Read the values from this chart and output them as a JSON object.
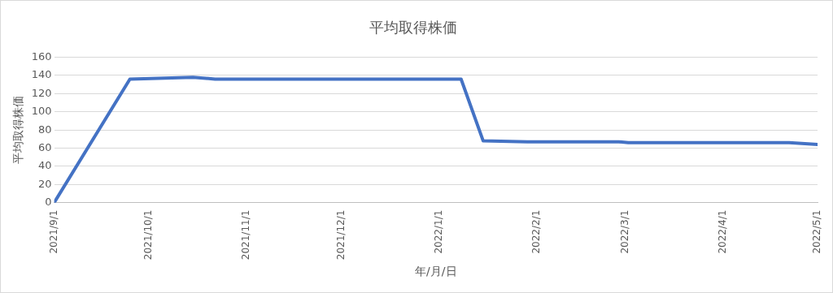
{
  "chart_data": {
    "type": "line",
    "title": "平均取得株価",
    "xlabel": "年/月/日",
    "ylabel": "平均取得株価",
    "x": [
      "2021-09-01",
      "2021-09-25",
      "2021-10-15",
      "2021-10-22",
      "2022-01-08",
      "2022-01-15",
      "2022-01-29",
      "2022-02-27",
      "2022-03-02",
      "2022-04-22",
      "2022-05-01"
    ],
    "series": [
      {
        "color": "#4472c4",
        "values": [
          0,
          136,
          138,
          136,
          136,
          68,
          67,
          67,
          66,
          66,
          64
        ]
      }
    ],
    "xlim": [
      "2021-09-01",
      "2022-05-01"
    ],
    "xticks": [
      {
        "value": "2021-09-01",
        "label": "2021/9/1"
      },
      {
        "value": "2021-10-01",
        "label": "2021/10/1"
      },
      {
        "value": "2021-11-01",
        "label": "2021/11/1"
      },
      {
        "value": "2021-12-01",
        "label": "2021/12/1"
      },
      {
        "value": "2022-01-01",
        "label": "2022/1/1"
      },
      {
        "value": "2022-02-01",
        "label": "2022/2/1"
      },
      {
        "value": "2022-03-01",
        "label": "2022/3/1"
      },
      {
        "value": "2022-04-01",
        "label": "2022/4/1"
      },
      {
        "value": "2022-05-01",
        "label": "2022/5/1"
      }
    ],
    "ylim": [
      0,
      160
    ],
    "yticks": [
      0,
      20,
      40,
      60,
      80,
      100,
      120,
      140,
      160
    ],
    "grid": "y",
    "legend": false,
    "marker": "none",
    "line_style": "solid"
  }
}
